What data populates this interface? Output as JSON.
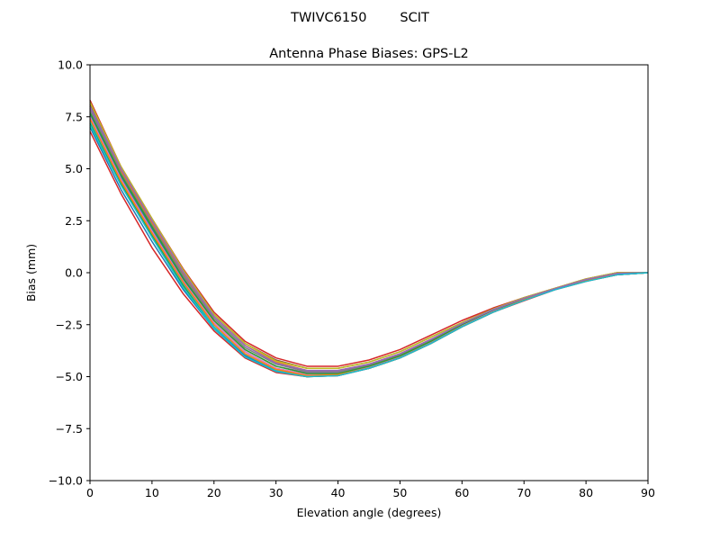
{
  "suptitle": "TWIVC6150        SCIT",
  "chart_data": {
    "type": "line",
    "title": "Antenna Phase Biases: GPS-L2",
    "xlabel": "Elevation angle (degrees)",
    "ylabel": "Bias (mm)",
    "xlim": [
      0,
      90
    ],
    "ylim": [
      -10,
      10
    ],
    "xticks": [
      0,
      10,
      20,
      30,
      40,
      50,
      60,
      70,
      80,
      90
    ],
    "xtick_labels": [
      "0",
      "10",
      "20",
      "30",
      "40",
      "50",
      "60",
      "70",
      "80",
      "90"
    ],
    "yticks": [
      10,
      7.5,
      5,
      2.5,
      0,
      -2.5,
      -5,
      -7.5,
      -10
    ],
    "ytick_labels": [
      "10.0",
      "7.5",
      "5.0",
      "2.5",
      "0.0",
      "−2.5",
      "−5.0",
      "−7.5",
      "−10.0"
    ],
    "grid": false,
    "x": [
      0,
      5,
      10,
      15,
      20,
      25,
      30,
      35,
      40,
      45,
      50,
      55,
      60,
      65,
      70,
      75,
      80,
      85,
      90
    ],
    "series": [
      {
        "color": "#d62728",
        "values": [
          8.3,
          5.1,
          2.6,
          0.2,
          -1.9,
          -3.3,
          -4.1,
          -4.5,
          -4.5,
          -4.2,
          -3.7,
          -3.0,
          -2.3,
          -1.7,
          -1.2,
          -0.75,
          -0.3,
          0.0,
          0.0
        ]
      },
      {
        "color": "#1f77b4",
        "values": [
          7.6,
          4.6,
          2.1,
          -0.3,
          -2.4,
          -3.8,
          -4.6,
          -4.9,
          -4.9,
          -4.6,
          -4.1,
          -3.4,
          -2.6,
          -1.9,
          -1.3,
          -0.8,
          -0.4,
          -0.1,
          0.0
        ]
      },
      {
        "color": "#ff7f0e",
        "values": [
          8.0,
          4.9,
          2.4,
          0.0,
          -2.1,
          -3.5,
          -4.3,
          -4.7,
          -4.7,
          -4.4,
          -3.9,
          -3.2,
          -2.5,
          -1.8,
          -1.3,
          -0.8,
          -0.35,
          -0.05,
          0.0
        ]
      },
      {
        "color": "#2ca02c",
        "values": [
          7.2,
          4.3,
          1.8,
          -0.6,
          -2.6,
          -4.0,
          -4.7,
          -5.0,
          -4.9,
          -4.6,
          -4.1,
          -3.4,
          -2.6,
          -1.9,
          -1.3,
          -0.8,
          -0.4,
          -0.1,
          0.0
        ]
      },
      {
        "color": "#9467bd",
        "values": [
          7.8,
          4.7,
          2.2,
          -0.2,
          -2.3,
          -3.7,
          -4.5,
          -4.8,
          -4.8,
          -4.5,
          -4.0,
          -3.3,
          -2.5,
          -1.8,
          -1.25,
          -0.8,
          -0.35,
          -0.05,
          0.0
        ]
      },
      {
        "color": "#8c564b",
        "values": [
          8.1,
          5.0,
          2.5,
          0.1,
          -2.0,
          -3.4,
          -4.2,
          -4.6,
          -4.6,
          -4.3,
          -3.8,
          -3.1,
          -2.4,
          -1.75,
          -1.2,
          -0.75,
          -0.3,
          0.0,
          0.0
        ]
      },
      {
        "color": "#e377c2",
        "values": [
          7.5,
          4.5,
          2.0,
          -0.4,
          -2.4,
          -3.8,
          -4.6,
          -4.9,
          -4.85,
          -4.55,
          -4.05,
          -3.35,
          -2.55,
          -1.85,
          -1.3,
          -0.8,
          -0.4,
          -0.08,
          0.0
        ]
      },
      {
        "color": "#7f7f7f",
        "values": [
          7.9,
          4.8,
          2.3,
          -0.1,
          -2.2,
          -3.6,
          -4.4,
          -4.75,
          -4.75,
          -4.45,
          -3.95,
          -3.25,
          -2.45,
          -1.8,
          -1.25,
          -0.78,
          -0.35,
          -0.05,
          0.0
        ]
      },
      {
        "color": "#bcbd22",
        "values": [
          8.2,
          5.1,
          2.6,
          0.15,
          -2.0,
          -3.4,
          -4.25,
          -4.6,
          -4.6,
          -4.3,
          -3.8,
          -3.1,
          -2.4,
          -1.75,
          -1.2,
          -0.75,
          -0.3,
          0.0,
          0.0
        ]
      },
      {
        "color": "#17becf",
        "values": [
          7.3,
          4.4,
          1.9,
          -0.5,
          -2.6,
          -3.95,
          -4.7,
          -4.95,
          -4.9,
          -4.6,
          -4.1,
          -3.4,
          -2.6,
          -1.9,
          -1.3,
          -0.8,
          -0.4,
          -0.1,
          0.0
        ]
      },
      {
        "color": "#1f77b4",
        "values": [
          7.0,
          4.0,
          1.5,
          -0.8,
          -2.7,
          -4.0,
          -4.75,
          -5.0,
          -4.95,
          -4.6,
          -4.1,
          -3.4,
          -2.6,
          -1.9,
          -1.3,
          -0.8,
          -0.4,
          -0.1,
          0.0
        ]
      },
      {
        "color": "#2ca02c",
        "values": [
          7.7,
          4.7,
          2.2,
          -0.25,
          -2.3,
          -3.7,
          -4.5,
          -4.85,
          -4.85,
          -4.5,
          -4.0,
          -3.3,
          -2.5,
          -1.8,
          -1.25,
          -0.8,
          -0.38,
          -0.06,
          0.0
        ]
      },
      {
        "color": "#d62728",
        "values": [
          6.8,
          3.8,
          1.2,
          -1.0,
          -2.8,
          -4.1,
          -4.8,
          -5.0,
          -4.95,
          -4.6,
          -4.1,
          -3.4,
          -2.6,
          -1.9,
          -1.35,
          -0.82,
          -0.42,
          -0.1,
          0.0
        ]
      },
      {
        "color": "#ff7f0e",
        "values": [
          7.4,
          4.4,
          1.9,
          -0.45,
          -2.5,
          -3.9,
          -4.65,
          -4.95,
          -4.9,
          -4.6,
          -4.1,
          -3.4,
          -2.6,
          -1.9,
          -1.3,
          -0.8,
          -0.4,
          -0.08,
          0.0
        ]
      },
      {
        "color": "#9467bd",
        "values": [
          8.0,
          5.0,
          2.5,
          0.05,
          -2.1,
          -3.5,
          -4.35,
          -4.7,
          -4.7,
          -4.4,
          -3.9,
          -3.2,
          -2.45,
          -1.78,
          -1.23,
          -0.77,
          -0.33,
          -0.03,
          0.0
        ]
      },
      {
        "color": "#17becf",
        "values": [
          7.1,
          4.2,
          1.7,
          -0.7,
          -2.7,
          -4.05,
          -4.75,
          -5.0,
          -4.95,
          -4.6,
          -4.1,
          -3.4,
          -2.6,
          -1.9,
          -1.33,
          -0.82,
          -0.42,
          -0.1,
          0.0
        ]
      }
    ]
  }
}
